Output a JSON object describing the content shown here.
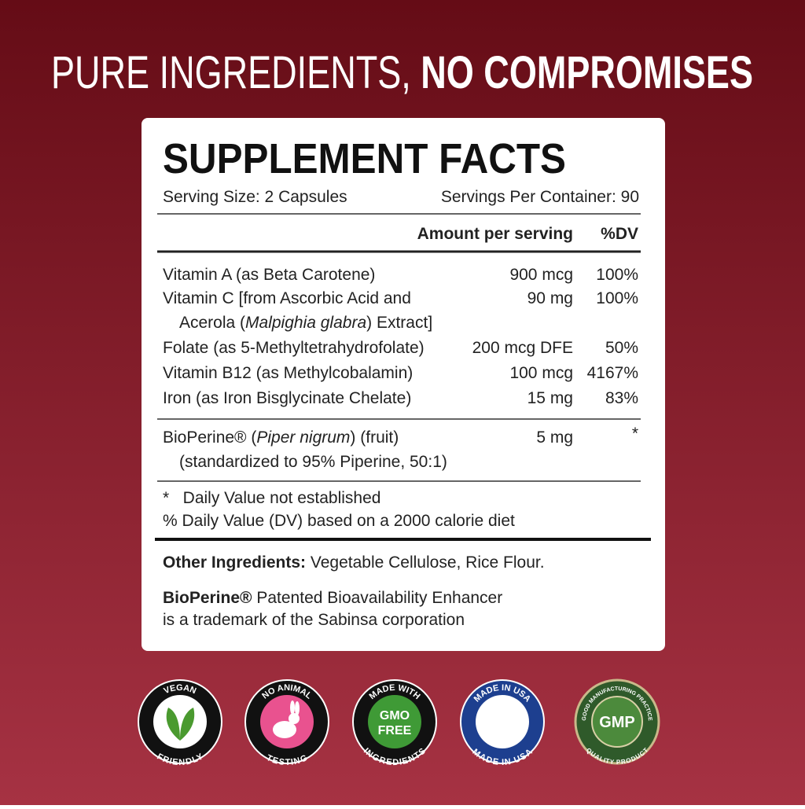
{
  "headline": {
    "light": "PURE INGREDIENTS,",
    "bold": "NO COMPROMISES"
  },
  "facts": {
    "title": "SUPPLEMENT FACTS",
    "serving_size": "Serving Size: 2 Capsules",
    "servings_per_container": "Servings Per Container: 90",
    "columns": {
      "amount": "Amount per serving",
      "dv": "%DV"
    },
    "rows": [
      {
        "name": "Vitamin A (as Beta Carotene)",
        "amount": "900 mcg",
        "dv": "100%"
      },
      {
        "name": [
          "Vitamin C [from Ascorbic Acid and",
          "Acerola (",
          "Malpighia glabra",
          ") Extract]"
        ],
        "amount": "90 mg",
        "dv": "100%"
      },
      {
        "name": "Folate (as 5-Methyltetrahydrofolate)",
        "amount": "200 mcg DFE",
        "dv": "50%"
      },
      {
        "name": "Vitamin B12 (as Methylcobalamin)",
        "amount": "100 mcg",
        "dv": "4167%"
      },
      {
        "name": "Iron (as Iron Bisglycinate Chelate)",
        "amount": "15 mg",
        "dv": "83%"
      }
    ],
    "bioperine": {
      "name": [
        "BioPerine® (",
        "Piper nigrum",
        ") (fruit)",
        "(standardized to 95% Piperine, 50:1)"
      ],
      "amount": "5 mg",
      "dv": "*"
    },
    "footnotes": [
      "*   Daily Value not established",
      "% Daily Value (DV) based on a 2000 calorie diet"
    ],
    "other_ingredients": {
      "label": "Other Ingredients:",
      "text": "Vegetable Cellulose, Rice Flour."
    },
    "note": {
      "bold": "BioPerine®",
      "text": "Patented Bioavailability Enhancer",
      "line2": "is a trademark of the Sabinsa corporation"
    }
  },
  "badges": [
    {
      "top": "VEGAN",
      "bottom": "FRIENDLY"
    },
    {
      "top": "NO ANIMAL",
      "bottom": "TESTING"
    },
    {
      "top": "MADE WITH",
      "center": [
        "GMO",
        "FREE"
      ],
      "bottom": "INGREDIENTS"
    },
    {
      "top": "MADE IN USA",
      "bottom": "MADE IN USA"
    },
    {
      "top": "GOOD MANUFACTURING PRACTICE",
      "center": [
        "GMP"
      ],
      "bottom": "QUALITY PRODUCT"
    }
  ]
}
